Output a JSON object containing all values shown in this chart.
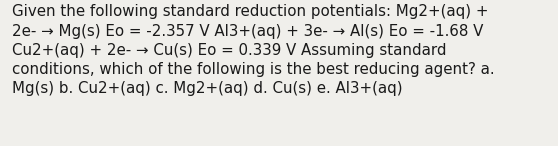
{
  "background_color": "#f0efeb",
  "text_color": "#1a1a1a",
  "font_size": 10.8,
  "font_family": "DejaVu Sans",
  "text": "Given the following standard reduction potentials: Mg2+(aq) +\n2e- → Mg(s) Eo = -2.357 V Al3+(aq) + 3e- → Al(s) Eo = -1.68 V\nCu2+(aq) + 2e- → Cu(s) Eo = 0.339 V Assuming standard\nconditions, which of the following is the best reducing agent? a.\nMg(s) b. Cu2+(aq) c. Mg2+(aq) d. Cu(s) e. Al3+(aq)",
  "figsize": [
    5.58,
    1.46
  ],
  "dpi": 100
}
